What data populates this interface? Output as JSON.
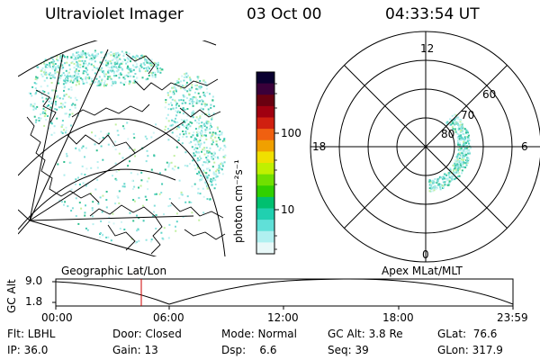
{
  "header": {
    "title": "Ultraviolet Imager",
    "date": "03 Oct 00",
    "time": "04:33:54 UT"
  },
  "colorbar": {
    "label": "photon cm⁻²s⁻¹",
    "ticks": [
      "100",
      "10"
    ],
    "colors": [
      "#0a0030",
      "#3a003a",
      "#6a0010",
      "#a00010",
      "#d02010",
      "#f06010",
      "#f0a000",
      "#f0e000",
      "#c0f000",
      "#70e000",
      "#30d000",
      "#00c070",
      "#20d0b0",
      "#60e0d8",
      "#b0f0f0",
      "#e8f8f8"
    ]
  },
  "left_map": {
    "caption": "Geographic Lat/Lon"
  },
  "polar_plot": {
    "caption": "Apex MLat/MLT",
    "mlt_labels": [
      "12",
      "18",
      "6",
      "0"
    ],
    "lat_labels": [
      "60",
      "70",
      "80"
    ]
  },
  "gc_alt_plot": {
    "axis_label": "GC Alt",
    "y_ticks": [
      "9.0",
      "1.8"
    ],
    "x_ticks": [
      "00:00",
      "06:00",
      "12:00",
      "18:00",
      "23:59"
    ],
    "marker_color": "#cc0000"
  },
  "info": {
    "row1": {
      "flt": "Flt: LBHL",
      "door": "Door: Closed",
      "mode": "Mode: Normal",
      "gc_alt": "GC Alt: 3.8 Re",
      "glat": "GLat:  76.6"
    },
    "row2": {
      "ip": "IP: 36.0",
      "gain": "Gain: 13",
      "dsp": "Dsp:    6.6",
      "seq": "Seq: 39",
      "glon": "GLon: 317.9"
    }
  }
}
